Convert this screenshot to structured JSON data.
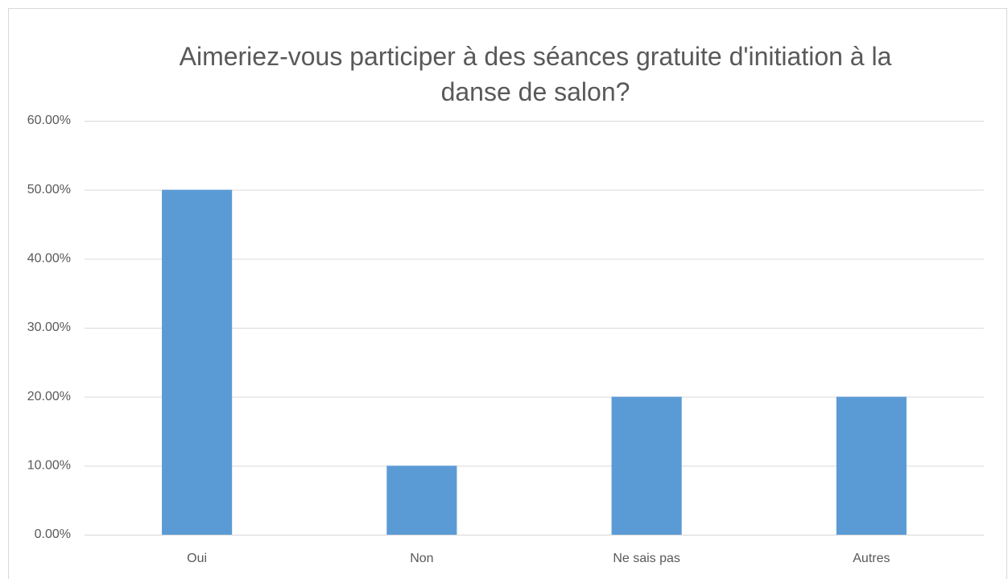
{
  "chart_data": {
    "type": "bar",
    "title": "Aimeriez-vous participer à des séances gratuite d'initiation à la danse de salon?",
    "categories": [
      "Oui",
      "Non",
      "Ne sais pas",
      "Autres"
    ],
    "values": [
      50,
      10,
      20,
      20
    ],
    "color": "#5b9bd5",
    "ylim": [
      0,
      60
    ],
    "yticks": [
      {
        "value": 0,
        "label": "0.00%"
      },
      {
        "value": 10,
        "label": "10.00%"
      },
      {
        "value": 20,
        "label": "20.00%"
      },
      {
        "value": 30,
        "label": "30.00%"
      },
      {
        "value": 40,
        "label": "40.00%"
      },
      {
        "value": 50,
        "label": "50.00%"
      },
      {
        "value": 60,
        "label": "60.00%"
      }
    ],
    "grid": true
  }
}
